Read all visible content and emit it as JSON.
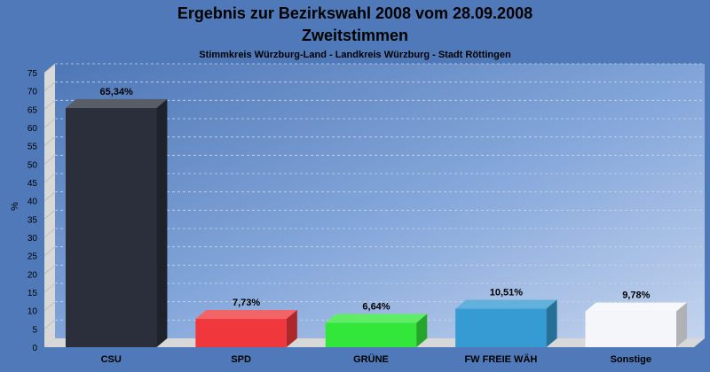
{
  "chart_data": {
    "type": "bar",
    "title": "Ergebnis zur Bezirkswahl 2008 vom 28.09.2008",
    "subtitle": "Zweitstimmen",
    "caption": "Stimmkreis Würzburg-Land - Landkreis Würzburg - Stadt Röttingen",
    "ylabel": "%",
    "xlabel": "",
    "ylim": [
      0,
      75
    ],
    "ytick_step": 5,
    "grid": true,
    "categories": [
      "CSU",
      "SPD",
      "GRÜNE",
      "FW FREIE WÄH",
      "Sonstige"
    ],
    "values": [
      65.34,
      7.73,
      6.64,
      10.51,
      9.78
    ],
    "value_labels": [
      "65,34%",
      "7,73%",
      "6,64%",
      "10,51%",
      "9,78%"
    ],
    "colors": [
      "#2a2f3b",
      "#f0383c",
      "#33e63a",
      "#359bd2",
      "#f5f6fa"
    ],
    "background_color": "#4f79b8"
  }
}
